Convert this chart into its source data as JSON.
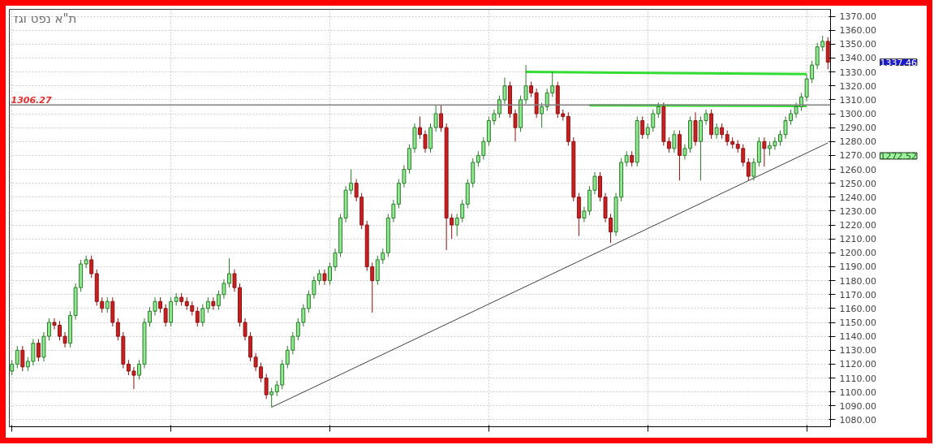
{
  "chart_data": {
    "type": "candlestick",
    "title": "ת\"א נפט וגז",
    "categories": [
      null,
      null,
      null,
      null,
      null,
      null,
      null,
      null,
      null,
      null,
      null,
      null,
      null,
      null,
      null,
      null,
      null,
      null,
      null,
      null,
      null,
      null,
      null,
      null,
      null,
      null,
      null,
      null,
      null,
      null,
      null,
      null,
      null,
      null,
      null,
      null,
      null,
      null,
      null,
      null,
      null,
      null,
      null,
      null,
      null,
      null,
      null,
      null,
      null,
      null,
      null,
      null,
      null,
      null,
      null,
      null,
      null,
      null,
      null,
      null,
      null,
      null,
      null,
      null,
      null,
      null,
      null,
      null,
      null,
      null,
      null,
      null,
      null,
      null,
      null,
      null,
      null,
      null,
      null,
      null,
      null,
      null,
      null,
      null,
      null,
      null,
      null,
      null,
      null,
      null,
      null,
      null,
      null,
      null,
      null,
      null,
      null,
      null,
      null,
      null,
      null,
      null,
      null,
      null,
      null,
      null,
      null,
      null,
      null,
      null,
      null,
      null,
      null,
      null,
      null,
      null,
      null,
      null,
      null,
      null,
      null,
      null,
      null,
      null,
      null,
      null,
      null,
      null,
      null,
      null,
      null,
      null,
      null,
      null,
      null,
      null,
      null,
      null,
      null,
      null,
      null,
      null,
      null,
      null,
      null,
      null,
      null,
      null,
      null,
      null,
      null,
      null,
      null,
      null,
      null
    ],
    "ohlc": [
      [
        1115,
        1123,
        1112,
        1120
      ],
      [
        1120,
        1133,
        1117,
        1130
      ],
      [
        1130,
        1133,
        1115,
        1118
      ],
      [
        1118,
        1125,
        1115,
        1122
      ],
      [
        1122,
        1138,
        1119,
        1135
      ],
      [
        1135,
        1138,
        1122,
        1125
      ],
      [
        1125,
        1143,
        1122,
        1140
      ],
      [
        1140,
        1153,
        1137,
        1150
      ],
      [
        1150,
        1153,
        1145,
        1148
      ],
      [
        1148,
        1151,
        1137,
        1140
      ],
      [
        1140,
        1143,
        1132,
        1135
      ],
      [
        1135,
        1158,
        1132,
        1155
      ],
      [
        1155,
        1178,
        1152,
        1175
      ],
      [
        1175,
        1195,
        1172,
        1192
      ],
      [
        1192,
        1198,
        1189,
        1195
      ],
      [
        1195,
        1198,
        1182,
        1185
      ],
      [
        1185,
        1188,
        1162,
        1165
      ],
      [
        1165,
        1168,
        1157,
        1160
      ],
      [
        1160,
        1168,
        1157,
        1165
      ],
      [
        1165,
        1168,
        1147,
        1150
      ],
      [
        1150,
        1153,
        1137,
        1140
      ],
      [
        1140,
        1143,
        1117,
        1120
      ],
      [
        1120,
        1123,
        1112,
        1115
      ],
      [
        1115,
        1118,
        1102,
        1112
      ],
      [
        1112,
        1123,
        1109,
        1120
      ],
      [
        1120,
        1153,
        1117,
        1150
      ],
      [
        1150,
        1161,
        1147,
        1158
      ],
      [
        1158,
        1168,
        1155,
        1165
      ],
      [
        1165,
        1168,
        1157,
        1160
      ],
      [
        1160,
        1163,
        1147,
        1150
      ],
      [
        1150,
        1168,
        1147,
        1165
      ],
      [
        1165,
        1171,
        1162,
        1168
      ],
      [
        1168,
        1171,
        1162,
        1165
      ],
      [
        1165,
        1168,
        1159,
        1162
      ],
      [
        1162,
        1165,
        1155,
        1158
      ],
      [
        1158,
        1161,
        1147,
        1150
      ],
      [
        1150,
        1163,
        1147,
        1160
      ],
      [
        1160,
        1168,
        1157,
        1165
      ],
      [
        1165,
        1168,
        1159,
        1162
      ],
      [
        1162,
        1173,
        1159,
        1170
      ],
      [
        1170,
        1181,
        1167,
        1178
      ],
      [
        1178,
        1196,
        1175,
        1185
      ],
      [
        1185,
        1188,
        1172,
        1175
      ],
      [
        1175,
        1178,
        1147,
        1150
      ],
      [
        1150,
        1153,
        1137,
        1140
      ],
      [
        1140,
        1143,
        1122,
        1125
      ],
      [
        1125,
        1128,
        1115,
        1118
      ],
      [
        1118,
        1121,
        1107,
        1110
      ],
      [
        1110,
        1113,
        1095,
        1098
      ],
      [
        1098,
        1103,
        1089,
        1100
      ],
      [
        1100,
        1108,
        1097,
        1105
      ],
      [
        1105,
        1123,
        1102,
        1120
      ],
      [
        1120,
        1133,
        1117,
        1130
      ],
      [
        1130,
        1143,
        1127,
        1140
      ],
      [
        1140,
        1153,
        1137,
        1150
      ],
      [
        1150,
        1163,
        1147,
        1160
      ],
      [
        1160,
        1173,
        1157,
        1170
      ],
      [
        1170,
        1183,
        1167,
        1180
      ],
      [
        1180,
        1188,
        1177,
        1185
      ],
      [
        1185,
        1188,
        1177,
        1180
      ],
      [
        1180,
        1193,
        1177,
        1190
      ],
      [
        1190,
        1203,
        1187,
        1200
      ],
      [
        1200,
        1228,
        1197,
        1225
      ],
      [
        1225,
        1248,
        1222,
        1245
      ],
      [
        1245,
        1260,
        1242,
        1250
      ],
      [
        1250,
        1253,
        1237,
        1240
      ],
      [
        1240,
        1243,
        1217,
        1220
      ],
      [
        1220,
        1223,
        1187,
        1190
      ],
      [
        1190,
        1193,
        1157,
        1180
      ],
      [
        1180,
        1198,
        1177,
        1195
      ],
      [
        1195,
        1203,
        1192,
        1200
      ],
      [
        1200,
        1228,
        1197,
        1225
      ],
      [
        1225,
        1238,
        1222,
        1235
      ],
      [
        1235,
        1253,
        1232,
        1250
      ],
      [
        1250,
        1263,
        1247,
        1260
      ],
      [
        1260,
        1278,
        1257,
        1275
      ],
      [
        1275,
        1293,
        1272,
        1290
      ],
      [
        1290,
        1298,
        1282,
        1285
      ],
      [
        1285,
        1288,
        1272,
        1275
      ],
      [
        1275,
        1293,
        1272,
        1290
      ],
      [
        1290,
        1306,
        1287,
        1300
      ],
      [
        1300,
        1306,
        1287,
        1290
      ],
      [
        1290,
        1293,
        1202,
        1225
      ],
      [
        1225,
        1228,
        1210,
        1220
      ],
      [
        1220,
        1228,
        1212,
        1225
      ],
      [
        1225,
        1238,
        1222,
        1235
      ],
      [
        1235,
        1253,
        1232,
        1250
      ],
      [
        1250,
        1268,
        1247,
        1265
      ],
      [
        1265,
        1273,
        1262,
        1270
      ],
      [
        1270,
        1283,
        1267,
        1280
      ],
      [
        1280,
        1298,
        1277,
        1295
      ],
      [
        1295,
        1303,
        1292,
        1300
      ],
      [
        1300,
        1313,
        1297,
        1310
      ],
      [
        1310,
        1326,
        1307,
        1320
      ],
      [
        1320,
        1323,
        1297,
        1300
      ],
      [
        1300,
        1303,
        1280,
        1290
      ],
      [
        1290,
        1313,
        1287,
        1310
      ],
      [
        1310,
        1335,
        1307,
        1320
      ],
      [
        1320,
        1323,
        1312,
        1315
      ],
      [
        1315,
        1318,
        1297,
        1300
      ],
      [
        1300,
        1308,
        1290,
        1305
      ],
      [
        1305,
        1318,
        1302,
        1315
      ],
      [
        1315,
        1330,
        1312,
        1320
      ],
      [
        1320,
        1323,
        1297,
        1300
      ],
      [
        1300,
        1303,
        1295,
        1298
      ],
      [
        1298,
        1301,
        1277,
        1280
      ],
      [
        1280,
        1283,
        1237,
        1240
      ],
      [
        1240,
        1243,
        1212,
        1225
      ],
      [
        1225,
        1233,
        1222,
        1230
      ],
      [
        1230,
        1248,
        1227,
        1245
      ],
      [
        1245,
        1258,
        1242,
        1255
      ],
      [
        1255,
        1258,
        1237,
        1240
      ],
      [
        1240,
        1243,
        1222,
        1225
      ],
      [
        1225,
        1228,
        1207,
        1215
      ],
      [
        1215,
        1243,
        1212,
        1240
      ],
      [
        1240,
        1268,
        1237,
        1265
      ],
      [
        1265,
        1273,
        1262,
        1270
      ],
      [
        1270,
        1273,
        1262,
        1265
      ],
      [
        1265,
        1298,
        1262,
        1295
      ],
      [
        1295,
        1298,
        1282,
        1285
      ],
      [
        1285,
        1293,
        1282,
        1290
      ],
      [
        1290,
        1303,
        1287,
        1300
      ],
      [
        1300,
        1308,
        1297,
        1305
      ],
      [
        1305,
        1308,
        1277,
        1280
      ],
      [
        1280,
        1283,
        1272,
        1275
      ],
      [
        1275,
        1288,
        1272,
        1285
      ],
      [
        1285,
        1288,
        1252,
        1270
      ],
      [
        1270,
        1278,
        1267,
        1275
      ],
      [
        1275,
        1298,
        1272,
        1295
      ],
      [
        1295,
        1301,
        1277,
        1280
      ],
      [
        1280,
        1298,
        1252,
        1295
      ],
      [
        1295,
        1303,
        1292,
        1300
      ],
      [
        1300,
        1303,
        1282,
        1285
      ],
      [
        1285,
        1293,
        1282,
        1290
      ],
      [
        1290,
        1293,
        1282,
        1285
      ],
      [
        1285,
        1288,
        1277,
        1280
      ],
      [
        1280,
        1283,
        1275,
        1278
      ],
      [
        1278,
        1281,
        1272,
        1275
      ],
      [
        1275,
        1278,
        1262,
        1265
      ],
      [
        1265,
        1268,
        1252,
        1255
      ],
      [
        1255,
        1268,
        1252,
        1265
      ],
      [
        1265,
        1283,
        1262,
        1280
      ],
      [
        1280,
        1283,
        1262,
        1275
      ],
      [
        1275,
        1280,
        1270,
        1277
      ],
      [
        1277,
        1283,
        1274,
        1280
      ],
      [
        1280,
        1288,
        1277,
        1285
      ],
      [
        1285,
        1298,
        1282,
        1295
      ],
      [
        1295,
        1303,
        1292,
        1300
      ],
      [
        1300,
        1308,
        1297,
        1305
      ],
      [
        1305,
        1315,
        1302,
        1312
      ],
      [
        1312,
        1328,
        1309,
        1325
      ],
      [
        1325,
        1338,
        1322,
        1335
      ],
      [
        1335,
        1351,
        1332,
        1348
      ],
      [
        1348,
        1356,
        1345,
        1352
      ],
      [
        1352,
        1355,
        1332,
        1337
      ]
    ],
    "series": [
      {
        "type": "line",
        "color": "#404040",
        "values": [
          null,
          null,
          null,
          null,
          null,
          null,
          null,
          null,
          null,
          null,
          null,
          null,
          null,
          null,
          null,
          null,
          null,
          null,
          null,
          null,
          null,
          null,
          null,
          null,
          null,
          null,
          null,
          null,
          null,
          null,
          null,
          null,
          null,
          null,
          null,
          null,
          null,
          null,
          null,
          null,
          null,
          null,
          null,
          null,
          null,
          null,
          null,
          null,
          null,
          1089,
          null,
          null,
          null,
          null,
          null,
          null,
          null,
          null,
          null,
          null,
          null,
          null,
          null,
          null,
          null,
          null,
          null,
          null,
          null,
          null,
          null,
          null,
          null,
          null,
          null,
          null,
          null,
          null,
          null,
          null,
          null,
          null,
          null,
          null,
          null,
          null,
          null,
          null,
          null,
          null,
          null,
          null,
          null,
          null,
          null,
          null,
          null,
          null,
          null,
          null,
          null,
          null,
          null,
          null,
          null,
          null,
          null,
          null,
          null,
          null,
          null,
          null,
          null,
          null,
          null,
          null,
          null,
          null,
          null,
          null,
          null,
          null,
          null,
          null,
          null,
          null,
          null,
          null,
          null,
          null,
          null,
          null,
          null,
          null,
          null,
          null,
          null,
          null,
          null,
          null,
          null,
          null,
          null,
          null,
          null,
          null,
          null,
          null,
          null,
          null,
          null,
          null,
          null,
          null,
          1279
        ]
      },
      {
        "type": "line",
        "color": "#33dd33",
        "values": [
          null,
          null,
          null,
          null,
          null,
          null,
          null,
          null,
          null,
          null,
          null,
          null,
          null,
          null,
          null,
          null,
          null,
          null,
          null,
          null,
          null,
          null,
          null,
          null,
          null,
          null,
          null,
          null,
          null,
          null,
          null,
          null,
          null,
          null,
          null,
          null,
          null,
          null,
          null,
          null,
          null,
          null,
          null,
          null,
          null,
          null,
          null,
          null,
          null,
          null,
          null,
          null,
          null,
          null,
          null,
          null,
          null,
          null,
          null,
          null,
          null,
          null,
          null,
          null,
          null,
          null,
          null,
          null,
          null,
          null,
          null,
          null,
          null,
          null,
          null,
          null,
          null,
          null,
          null,
          null,
          null,
          null,
          null,
          null,
          null,
          null,
          null,
          null,
          null,
          null,
          null,
          null,
          null,
          null,
          null,
          null,
          null,
          1330,
          null,
          null,
          null,
          null,
          null,
          null,
          null,
          null,
          null,
          null,
          null,
          null,
          null,
          null,
          null,
          null,
          null,
          null,
          null,
          null,
          null,
          null,
          null,
          null,
          null,
          null,
          null,
          null,
          null,
          null,
          null,
          null,
          null,
          null,
          null,
          null,
          null,
          null,
          null,
          null,
          null,
          null,
          null,
          null,
          null,
          null,
          null,
          null,
          null,
          null,
          null,
          null,
          1328.5,
          null,
          null,
          null,
          null
        ]
      },
      {
        "type": "line",
        "color": "#33dd33",
        "values": [
          null,
          null,
          null,
          null,
          null,
          null,
          null,
          null,
          null,
          null,
          null,
          null,
          null,
          null,
          null,
          null,
          null,
          null,
          null,
          null,
          null,
          null,
          null,
          null,
          null,
          null,
          null,
          null,
          null,
          null,
          null,
          null,
          null,
          null,
          null,
          null,
          null,
          null,
          null,
          null,
          null,
          null,
          null,
          null,
          null,
          null,
          null,
          null,
          null,
          null,
          null,
          null,
          null,
          null,
          null,
          null,
          null,
          null,
          null,
          null,
          null,
          null,
          null,
          null,
          null,
          null,
          null,
          null,
          null,
          null,
          null,
          null,
          null,
          null,
          null,
          null,
          null,
          null,
          null,
          null,
          null,
          null,
          null,
          null,
          null,
          null,
          null,
          null,
          null,
          null,
          null,
          null,
          null,
          null,
          null,
          null,
          null,
          null,
          null,
          null,
          null,
          null,
          null,
          null,
          null,
          null,
          null,
          null,
          null,
          1306,
          null,
          null,
          null,
          null,
          null,
          null,
          null,
          null,
          null,
          null,
          null,
          null,
          null,
          null,
          null,
          null,
          null,
          null,
          null,
          null,
          null,
          null,
          null,
          null,
          null,
          null,
          null,
          null,
          null,
          null,
          null,
          null,
          null,
          null,
          null,
          null,
          null,
          null,
          null,
          null,
          1305.5,
          null,
          null,
          null,
          null
        ]
      }
    ],
    "ref_lines": [
      {
        "axis": "y",
        "value": 1306.27,
        "label": "1306.27",
        "color": "#808080"
      }
    ],
    "annotations": [
      "1337.46",
      "1272.52"
    ],
    "ylim": [
      1075,
      1375
    ],
    "yticks": [
      {
        "value": 1080,
        "label": "1080.00"
      },
      {
        "value": 1090,
        "label": "1090.00"
      },
      {
        "value": 1100,
        "label": "1100.00"
      },
      {
        "value": 1110,
        "label": "1110.00"
      },
      {
        "value": 1120,
        "label": "1120.00"
      },
      {
        "value": 1130,
        "label": "1130.00"
      },
      {
        "value": 1140,
        "label": "1140.00"
      },
      {
        "value": 1150,
        "label": "1150.00"
      },
      {
        "value": 1160,
        "label": "1160.00"
      },
      {
        "value": 1170,
        "label": "1170.00"
      },
      {
        "value": 1180,
        "label": "1180.00"
      },
      {
        "value": 1190,
        "label": "1190.00"
      },
      {
        "value": 1200,
        "label": "1200.00"
      },
      {
        "value": 1210,
        "label": "1210.00"
      },
      {
        "value": 1220,
        "label": "1220.00"
      },
      {
        "value": 1230,
        "label": "1230.00"
      },
      {
        "value": 1240,
        "label": "1240.00"
      },
      {
        "value": 1250,
        "label": "1250.00"
      },
      {
        "value": 1260,
        "label": "1260.00"
      },
      {
        "value": 1270,
        "label": "1270.00"
      },
      {
        "value": 1280,
        "label": "1280.00"
      },
      {
        "value": 1290,
        "label": "1290.00"
      },
      {
        "value": 1300,
        "label": "1300.00"
      },
      {
        "value": 1310,
        "label": "1310.00"
      },
      {
        "value": 1320,
        "label": "1320.00"
      },
      {
        "value": 1330,
        "label": "1330.00"
      },
      {
        "value": 1340,
        "label": "1340.00"
      },
      {
        "value": 1350,
        "label": "1350.00"
      },
      {
        "value": 1360,
        "label": "1360.00"
      },
      {
        "value": 1370,
        "label": "1370.00"
      }
    ],
    "tick_labels": "y",
    "grid": true
  }
}
